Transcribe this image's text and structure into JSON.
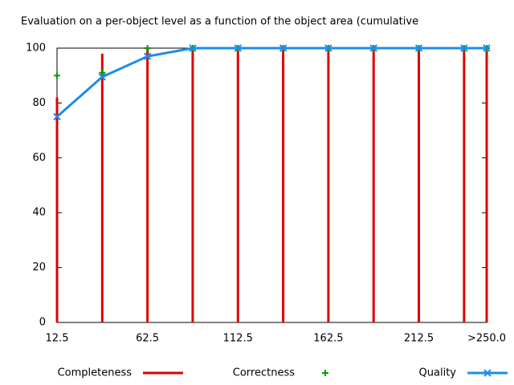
{
  "chart_data": {
    "type": "line",
    "title": "Evaluation on a per-object level as a function of the object area (cumulative",
    "x": [
      12.5,
      37.5,
      62.5,
      87.5,
      112.5,
      137.5,
      162.5,
      187.5,
      212.5,
      237.5,
      250
    ],
    "series": [
      {
        "name": "Completeness",
        "color": "#e00000",
        "style": "impulses",
        "values": [
          82,
          98,
          100,
          100,
          100,
          100,
          100,
          100,
          100,
          100,
          100
        ]
      },
      {
        "name": "Correctness",
        "color": "#00a000",
        "style": "points",
        "values": [
          90,
          91,
          100,
          100,
          100,
          100,
          100,
          100,
          100,
          100,
          100
        ]
      },
      {
        "name": "Quality",
        "color": "#1e8ce8",
        "style": "linespoints",
        "values": [
          75,
          89.5,
          97,
          100,
          100,
          100,
          100,
          100,
          100,
          100,
          100
        ]
      }
    ],
    "xlim": [
      12.5,
      250
    ],
    "ylim": [
      0,
      100
    ],
    "xticks": [
      12.5,
      62.5,
      112.5,
      162.5,
      212.5,
      {
        "value": 250,
        "label": ">250.0"
      }
    ],
    "yticks": [
      0,
      20,
      40,
      60,
      80,
      100
    ],
    "legend": "bottom"
  }
}
